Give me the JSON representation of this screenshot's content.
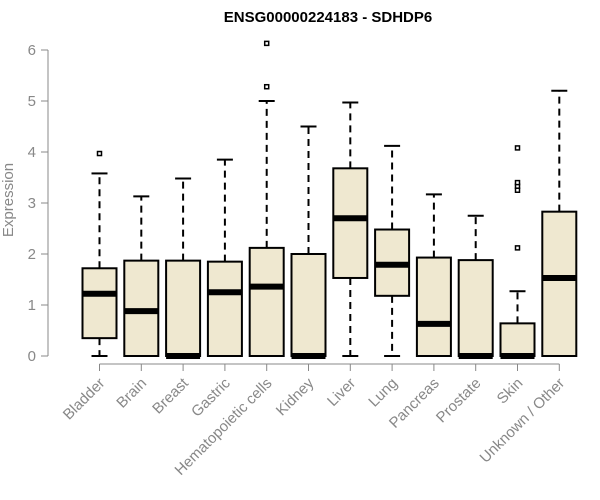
{
  "chart_data": {
    "type": "boxplot",
    "title": "ENSG00000224183 - SDHDP6",
    "xlabel": "",
    "ylabel": "Expression",
    "ylim": [
      0,
      6
    ],
    "yticks": [
      0,
      1,
      2,
      3,
      4,
      5,
      6
    ],
    "box_fill": "#efe8d0",
    "box_stroke": "#000000",
    "axis_color": "#888888",
    "categories": [
      "Bladder",
      "Brain",
      "Breast",
      "Gastric",
      "Hematopoietic cells",
      "Kidney",
      "Liver",
      "Lung",
      "Pancreas",
      "Prostate",
      "Skin",
      "Unknown / Other"
    ],
    "boxes": [
      {
        "name": "Bladder",
        "whisker_low": 0,
        "q1": 0.35,
        "median": 1.22,
        "q3": 1.72,
        "whisker_high": 3.58,
        "outliers": [
          3.97
        ]
      },
      {
        "name": "Brain",
        "whisker_low": 0,
        "q1": 0,
        "median": 0.88,
        "q3": 1.87,
        "whisker_high": 3.13,
        "outliers": []
      },
      {
        "name": "Breast",
        "whisker_low": 0,
        "q1": 0,
        "median": 0,
        "q3": 1.87,
        "whisker_high": 3.48,
        "outliers": []
      },
      {
        "name": "Gastric",
        "whisker_low": 0,
        "q1": 0,
        "median": 1.25,
        "q3": 1.85,
        "whisker_high": 3.85,
        "outliers": []
      },
      {
        "name": "Hematopoietic cells",
        "whisker_low": 0,
        "q1": 0,
        "median": 1.36,
        "q3": 2.12,
        "whisker_high": 5.0,
        "outliers": [
          5.28,
          6.13
        ]
      },
      {
        "name": "Kidney",
        "whisker_low": 0,
        "q1": 0,
        "median": 0,
        "q3": 2.0,
        "whisker_high": 4.5,
        "outliers": []
      },
      {
        "name": "Liver",
        "whisker_low": 0,
        "q1": 1.53,
        "median": 2.7,
        "q3": 3.68,
        "whisker_high": 4.97,
        "outliers": []
      },
      {
        "name": "Lung",
        "whisker_low": 0,
        "q1": 1.18,
        "median": 1.79,
        "q3": 2.48,
        "whisker_high": 4.12,
        "outliers": []
      },
      {
        "name": "Pancreas",
        "whisker_low": 0,
        "q1": 0,
        "median": 0.63,
        "q3": 1.93,
        "whisker_high": 3.17,
        "outliers": []
      },
      {
        "name": "Prostate",
        "whisker_low": 0,
        "q1": 0,
        "median": 0,
        "q3": 1.88,
        "whisker_high": 2.75,
        "outliers": []
      },
      {
        "name": "Skin",
        "whisker_low": 0,
        "q1": 0,
        "median": 0,
        "q3": 0.64,
        "whisker_high": 1.27,
        "outliers": [
          2.12,
          3.25,
          3.33,
          3.4,
          4.08
        ]
      },
      {
        "name": "Unknown / Other",
        "whisker_low": 0,
        "q1": 0,
        "median": 1.53,
        "q3": 2.83,
        "whisker_high": 5.2,
        "outliers": []
      }
    ]
  }
}
